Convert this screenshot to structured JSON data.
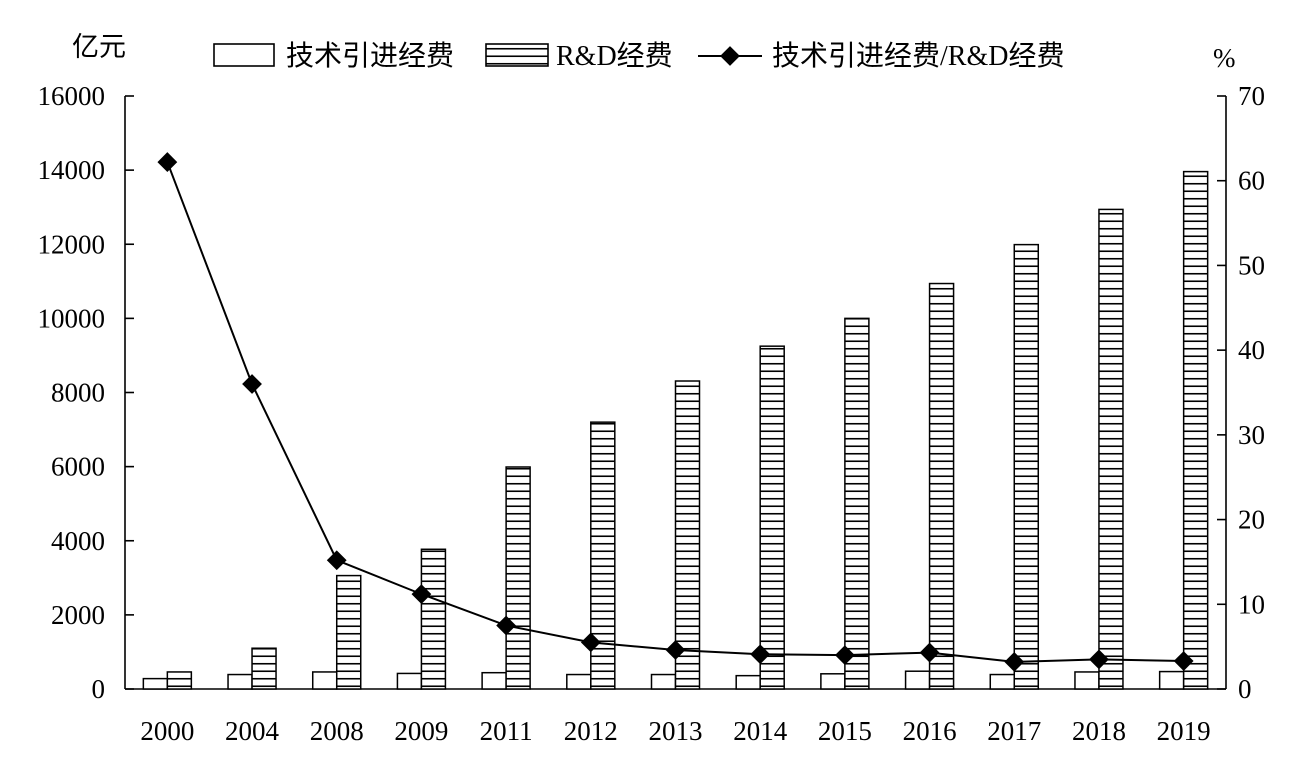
{
  "chart_data": {
    "type": "bar+line",
    "title": "",
    "categories": [
      "2000",
      "2004",
      "2008",
      "2009",
      "2011",
      "2012",
      "2013",
      "2014",
      "2015",
      "2016",
      "2017",
      "2018",
      "2019"
    ],
    "series": [
      {
        "name": "技术引进经费",
        "type": "bar",
        "axis": "left",
        "pattern": "blank",
        "values": [
          280,
          390,
          460,
          420,
          440,
          390,
          390,
          360,
          410,
          480,
          390,
          460,
          470
        ]
      },
      {
        "name": "R&D经费",
        "type": "bar",
        "axis": "left",
        "pattern": "horizontal-stripes",
        "values": [
          460,
          1100,
          3060,
          3770,
          5990,
          7200,
          8310,
          9250,
          10000,
          10940,
          11990,
          12940,
          13960
        ]
      },
      {
        "name": "技术引进经费/R&D经费",
        "type": "line",
        "axis": "right",
        "marker": "diamond",
        "values": [
          62.2,
          36.0,
          15.2,
          11.2,
          7.5,
          5.5,
          4.6,
          4.1,
          4.0,
          4.3,
          3.2,
          3.5,
          3.3
        ]
      }
    ],
    "y_left": {
      "unit": "亿元",
      "ylim": [
        0,
        16000
      ],
      "ticks": [
        "0",
        "2000",
        "4000",
        "6000",
        "8000",
        "10000",
        "12000",
        "14000",
        "16000"
      ]
    },
    "y_right": {
      "unit": "%",
      "ylim": [
        0,
        70
      ],
      "ticks": [
        "0",
        "10",
        "20",
        "30",
        "40",
        "50",
        "60",
        "70"
      ]
    },
    "legend_position": "top-center",
    "grid": false,
    "colors": {
      "stroke": "#000000",
      "background": "#ffffff"
    }
  }
}
